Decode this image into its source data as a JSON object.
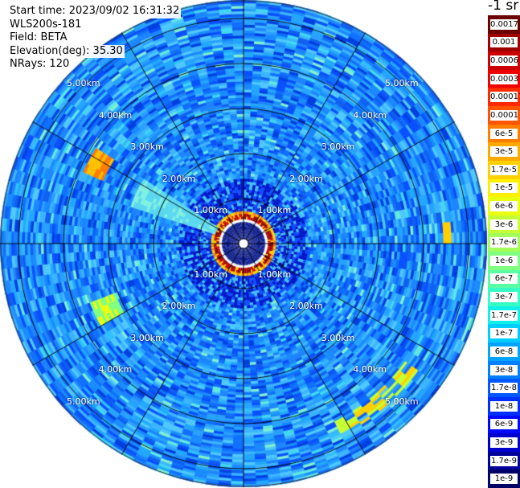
{
  "header": {
    "start_time": "Start time: 2023/09/02 16:31:32",
    "instrument": "WLS200s-181",
    "field": "Field: BETA",
    "elevation": "Elevation(deg): 35.30",
    "nrays": "NRays: 120"
  },
  "units_label": "-1 sr",
  "colorbar_labels": [
    "0.0017",
    "0.001",
    "0.0006",
    "0.0003",
    "0.00017",
    "0.0001",
    "6e-5",
    "3e-5",
    "1.7e-5",
    "1e-5",
    "6e-6",
    "3e-6",
    "1.7e-6",
    "1e-6",
    "6e-7",
    "3e-7",
    "1.7e-7",
    "1e-7",
    "6e-8",
    "3e-8",
    "1.7e-8",
    "1e-8",
    "6e-9",
    "3e-9",
    "1.7e-9",
    "1e-9"
  ],
  "colorbar_colors": [
    "#6a0000",
    "#a00000",
    "#cc0000",
    "#ee0000",
    "#ff2b00",
    "#ff5500",
    "#ff7d00",
    "#ffaa00",
    "#ffd000",
    "#fff000",
    "#eaff10",
    "#c5ff35",
    "#a3ff5a",
    "#80ff80",
    "#5affa3",
    "#35ffc5",
    "#10f0e8",
    "#00ccff",
    "#00a4ff",
    "#0080ff",
    "#0058ff",
    "#0030ff",
    "#0008ff",
    "#0000cc",
    "#000099",
    "#000066"
  ],
  "range_rings": {
    "labels": [
      "1.00km",
      "2.00km",
      "3.00km",
      "4.00km",
      "5.00km"
    ]
  },
  "chart_data": {
    "type": "heatmap",
    "title": "",
    "field": "BETA",
    "elevation_deg": 35.3,
    "n_rays": 120,
    "max_range_km": 5.0,
    "color_scale": "log",
    "value_range": [
      1e-09,
      0.0017
    ],
    "features": [
      {
        "name": "near-range ring",
        "range_km": 0.5,
        "level": "0.001"
      },
      {
        "name": "sector beam",
        "azimuth_deg": [
          290,
          300
        ],
        "level": "1.7e-7"
      },
      {
        "name": "arc echo south-east",
        "range_km": [
          4.3,
          5.0
        ],
        "azimuth_deg": [
          125,
          150
        ],
        "level": "3e-6"
      }
    ]
  }
}
